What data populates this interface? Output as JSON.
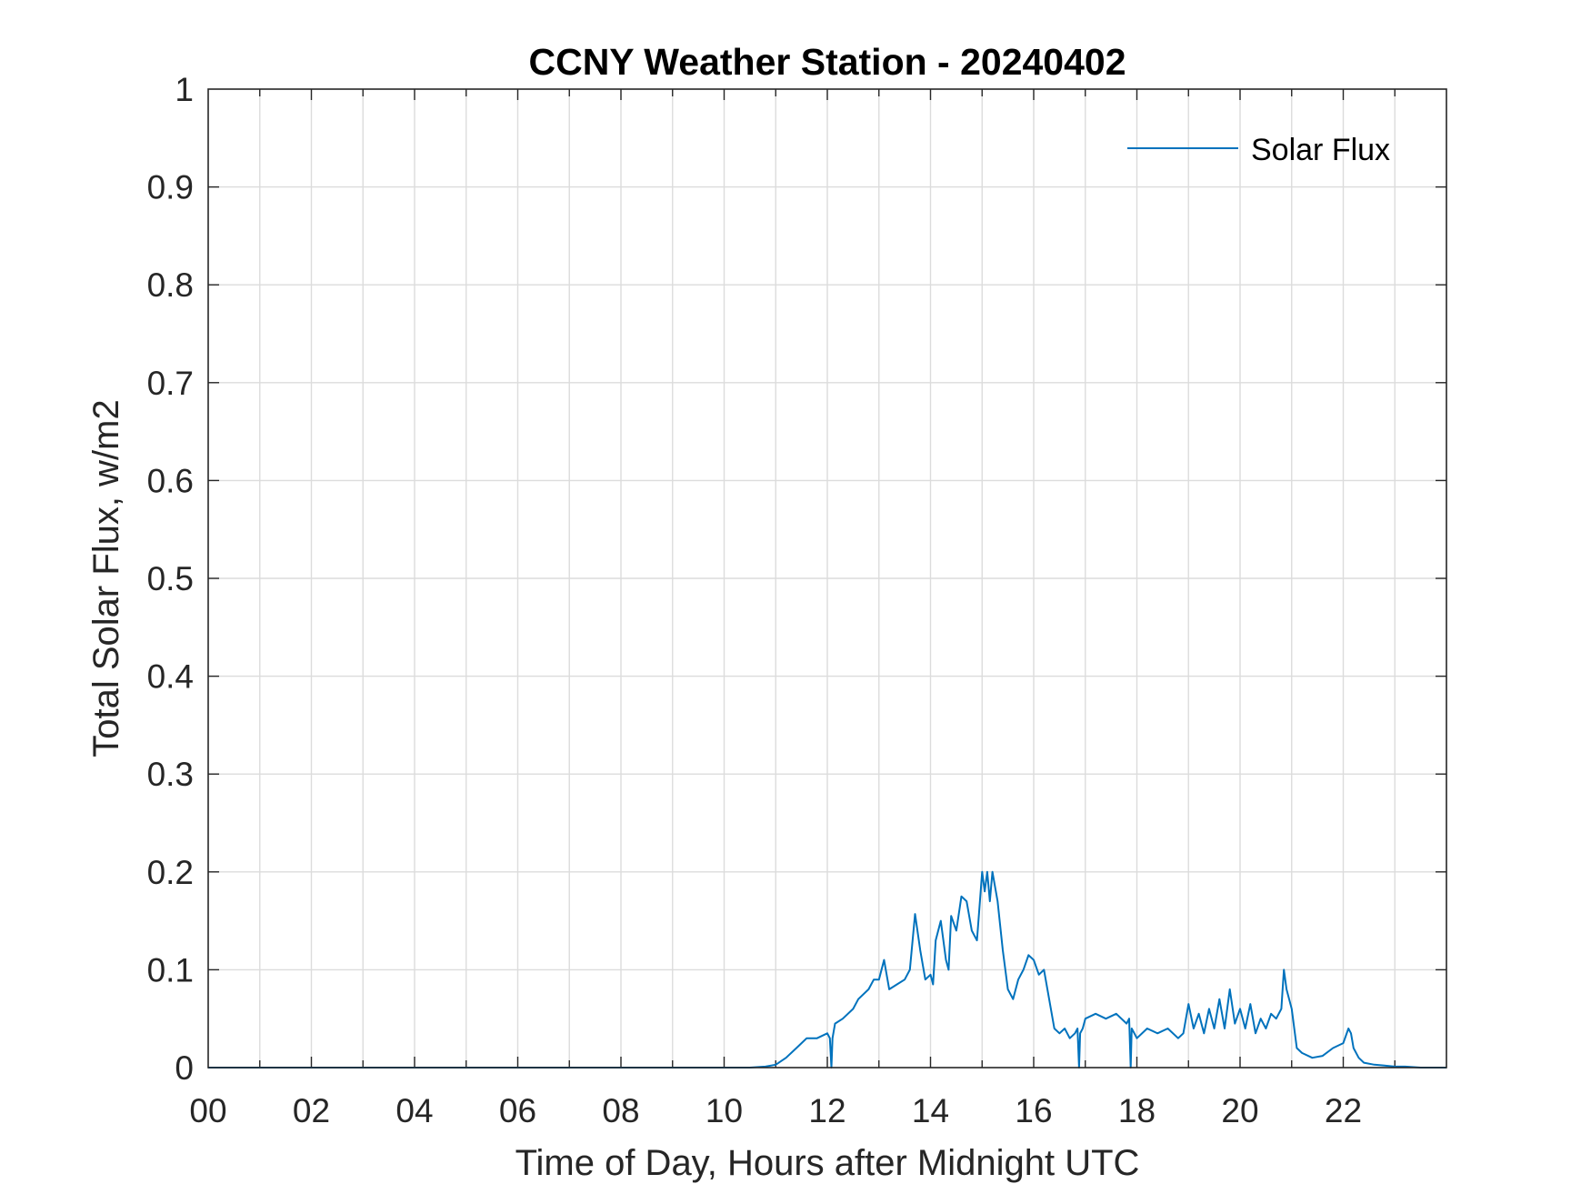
{
  "chart_data": {
    "type": "line",
    "title": "CCNY Weather Station - 20240402",
    "xlabel": "Time of Day, Hours after Midnight UTC",
    "ylabel": "Total Solar Flux, w/m2",
    "xlim": [
      0,
      24
    ],
    "ylim": [
      0,
      1
    ],
    "grid": true,
    "legend_position": "top-right",
    "x_ticks": [
      0,
      2,
      4,
      6,
      8,
      10,
      12,
      14,
      16,
      18,
      20,
      22
    ],
    "x_tick_labels": [
      "00",
      "02",
      "04",
      "06",
      "08",
      "10",
      "12",
      "14",
      "16",
      "18",
      "20",
      "22"
    ],
    "y_ticks": [
      0,
      0.1,
      0.2,
      0.3,
      0.4,
      0.5,
      0.6,
      0.7,
      0.8,
      0.9,
      1
    ],
    "y_tick_labels": [
      "0",
      "0.1",
      "0.2",
      "0.3",
      "0.4",
      "0.5",
      "0.6",
      "0.7",
      "0.8",
      "0.9",
      "1"
    ],
    "series": [
      {
        "name": "Solar Flux",
        "color": "#0072BD",
        "x": [
          0,
          10.5,
          10.8,
          11.0,
          11.2,
          11.4,
          11.6,
          11.8,
          12.0,
          12.05,
          12.08,
          12.1,
          12.15,
          12.3,
          12.5,
          12.6,
          12.8,
          12.9,
          13.0,
          13.1,
          13.2,
          13.35,
          13.5,
          13.6,
          13.7,
          13.8,
          13.9,
          14.0,
          14.05,
          14.1,
          14.2,
          14.3,
          14.35,
          14.4,
          14.5,
          14.6,
          14.7,
          14.8,
          14.9,
          15.0,
          15.05,
          15.1,
          15.15,
          15.2,
          15.3,
          15.4,
          15.5,
          15.6,
          15.7,
          15.8,
          15.9,
          16.0,
          16.1,
          16.2,
          16.3,
          16.4,
          16.5,
          16.6,
          16.7,
          16.8,
          16.85,
          16.88,
          16.9,
          16.95,
          17.0,
          17.2,
          17.4,
          17.6,
          17.8,
          17.85,
          17.88,
          17.9,
          17.95,
          18.0,
          18.2,
          18.4,
          18.6,
          18.8,
          18.9,
          19.0,
          19.1,
          19.2,
          19.3,
          19.4,
          19.5,
          19.6,
          19.7,
          19.8,
          19.9,
          20.0,
          20.1,
          20.2,
          20.3,
          20.4,
          20.5,
          20.6,
          20.7,
          20.8,
          20.85,
          20.9,
          21.0,
          21.1,
          21.2,
          21.4,
          21.6,
          21.8,
          22.0,
          22.1,
          22.15,
          22.2,
          22.3,
          22.4,
          22.6,
          22.8,
          23.0,
          23.2,
          23.5,
          24.0
        ],
        "values": [
          0,
          0,
          0.001,
          0.003,
          0.01,
          0.02,
          0.03,
          0.03,
          0.035,
          0.03,
          0,
          0.03,
          0.045,
          0.05,
          0.06,
          0.07,
          0.08,
          0.09,
          0.09,
          0.11,
          0.08,
          0.085,
          0.09,
          0.1,
          0.157,
          0.12,
          0.09,
          0.095,
          0.085,
          0.13,
          0.15,
          0.11,
          0.1,
          0.155,
          0.14,
          0.175,
          0.17,
          0.14,
          0.13,
          0.2,
          0.18,
          0.2,
          0.17,
          0.2,
          0.17,
          0.12,
          0.08,
          0.07,
          0.09,
          0.1,
          0.115,
          0.11,
          0.095,
          0.1,
          0.07,
          0.04,
          0.035,
          0.04,
          0.03,
          0.035,
          0.04,
          0,
          0.035,
          0.04,
          0.05,
          0.055,
          0.05,
          0.055,
          0.045,
          0.05,
          0,
          0.04,
          0.035,
          0.03,
          0.04,
          0.035,
          0.04,
          0.03,
          0.035,
          0.065,
          0.04,
          0.055,
          0.035,
          0.06,
          0.04,
          0.07,
          0.04,
          0.08,
          0.045,
          0.06,
          0.04,
          0.065,
          0.035,
          0.05,
          0.04,
          0.055,
          0.05,
          0.06,
          0.1,
          0.08,
          0.06,
          0.02,
          0.015,
          0.01,
          0.012,
          0.02,
          0.025,
          0.04,
          0.035,
          0.02,
          0.01,
          0.005,
          0.003,
          0.002,
          0.001,
          0.001,
          0,
          0
        ]
      }
    ]
  }
}
